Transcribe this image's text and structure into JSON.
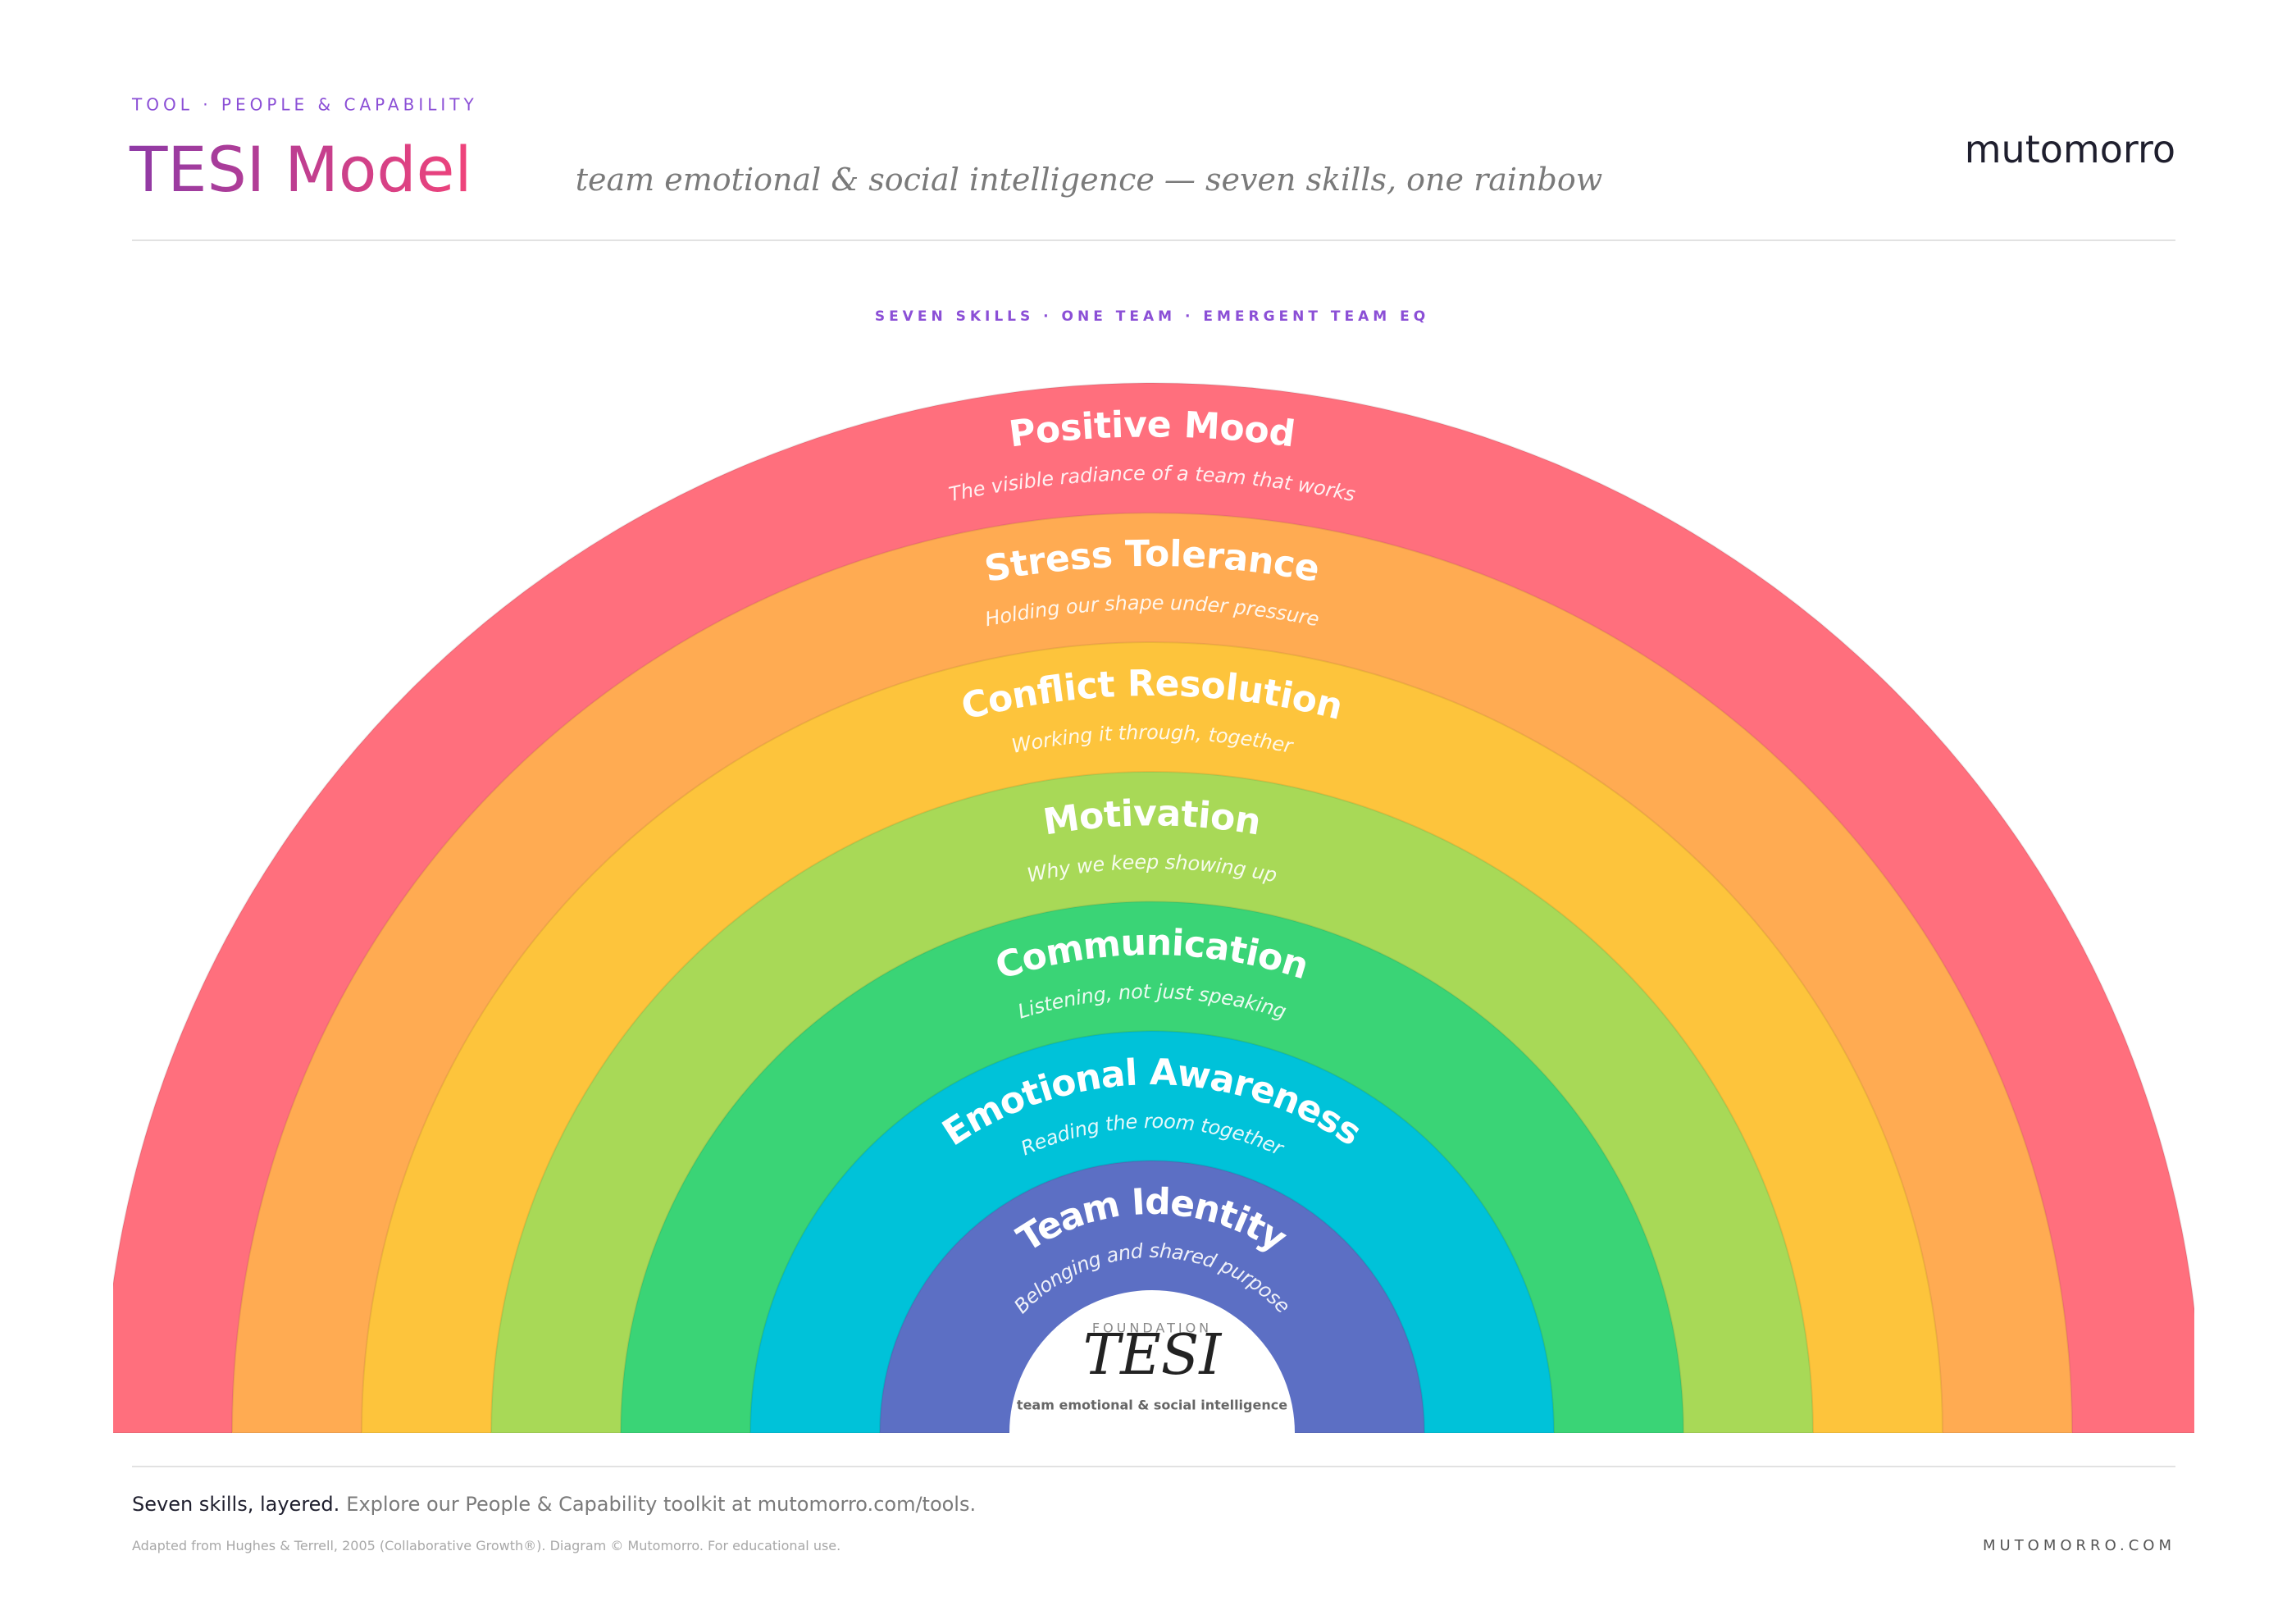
{
  "header": {
    "eyebrow": "TOOL · PEOPLE & CAPABILITY",
    "title": "TESI Model",
    "subtitle": "team emotional & social intelligence — seven skills, one rainbow",
    "brand": "mutomorro"
  },
  "diagram": {
    "kicker": "SEVEN SKILLS · ONE TEAM · EMERGENT TEAM EQ",
    "layers": [
      {
        "name": "Positive Mood",
        "tagline": "The visible radiance of a team that works",
        "color": "#ff6f7d"
      },
      {
        "name": "Stress Tolerance",
        "tagline": "Holding our shape under pressure",
        "color": "#ffab52"
      },
      {
        "name": "Conflict Resolution",
        "tagline": "Working it through, together",
        "color": "#fdc43c"
      },
      {
        "name": "Motivation",
        "tagline": "Why we keep showing up",
        "color": "#a8d957"
      },
      {
        "name": "Communication",
        "tagline": "Listening, not just speaking",
        "color": "#3ad476"
      },
      {
        "name": "Emotional Awareness",
        "tagline": "Reading the room together",
        "color": "#00c2d9"
      },
      {
        "name": "Team Identity",
        "tagline": "Belonging and shared purpose",
        "color": "#5c6fc4"
      }
    ],
    "center": {
      "label": "FOUNDATION",
      "title": "TESI",
      "caption": "team emotional & social intelligence"
    }
  },
  "footer": {
    "lead": "Seven skills, layered.",
    "text": "Explore our People & Capability toolkit at mutomorro.com/tools.",
    "credit": "Adapted from Hughes & Terrell, 2005 (Collaborative Growth®). Diagram © Mutomorro. For educational use.",
    "site": "MUTOMORRO.COM"
  }
}
